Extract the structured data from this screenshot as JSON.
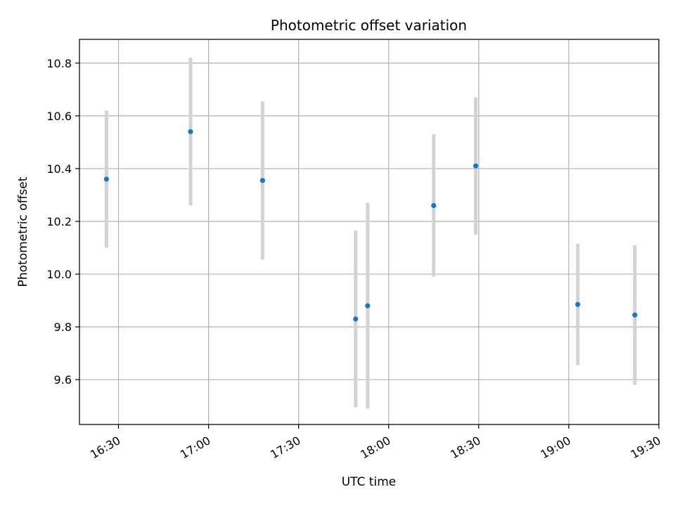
{
  "chart_data": {
    "type": "scatter",
    "title": "Photometric offset variation",
    "xlabel": "UTC time",
    "ylabel": "Photometric offset",
    "x_ticks": [
      "16:30",
      "17:00",
      "17:30",
      "18:00",
      "18:30",
      "19:00",
      "19:30"
    ],
    "y_ticks": [
      9.6,
      9.8,
      10.0,
      10.2,
      10.4,
      10.6,
      10.8
    ],
    "xlim": [
      "16:17",
      "19:30"
    ],
    "ylim": [
      9.43,
      10.89
    ],
    "grid": true,
    "colors": {
      "point": "#1f77b4",
      "errorbar": "#d3d3d3",
      "grid": "#b0b0b0"
    },
    "points": [
      {
        "time": "16:26",
        "y": 10.36,
        "err": 0.26
      },
      {
        "time": "16:54",
        "y": 10.54,
        "err": 0.28
      },
      {
        "time": "17:18",
        "y": 10.355,
        "err": 0.3
      },
      {
        "time": "17:49",
        "y": 9.83,
        "err": 0.335
      },
      {
        "time": "17:53",
        "y": 9.88,
        "err": 0.39
      },
      {
        "time": "18:15",
        "y": 10.26,
        "err": 0.27
      },
      {
        "time": "18:29",
        "y": 10.41,
        "err": 0.26
      },
      {
        "time": "19:03",
        "y": 9.885,
        "err": 0.23
      },
      {
        "time": "19:22",
        "y": 9.845,
        "err": 0.265
      }
    ]
  }
}
